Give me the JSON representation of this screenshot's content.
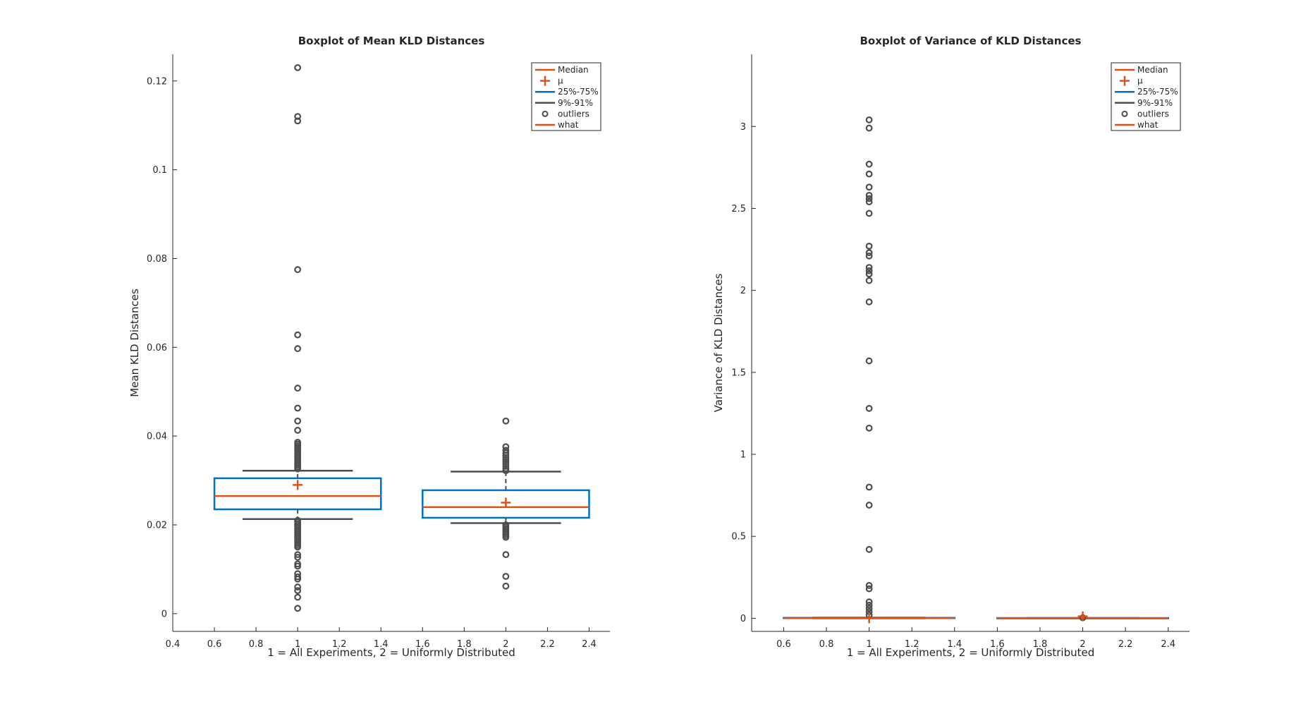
{
  "chart_data": [
    {
      "type": "box",
      "title": "Boxplot of Mean KLD Distances",
      "xlabel": "1 = All Experiments, 2 = Uniformly Distributed",
      "ylabel": "Mean KLD Distances",
      "xlim": [
        0.4,
        2.5
      ],
      "ylim": [
        -0.004,
        0.126
      ],
      "xticks": [
        0.4,
        0.6,
        0.8,
        1,
        1.2,
        1.4,
        1.6,
        1.8,
        2,
        2.2,
        2.4
      ],
      "xtick_labels": [
        "0.4",
        "0.6",
        "0.8",
        "1",
        "1.2",
        "1.4",
        "1.6",
        "1.8",
        "2",
        "2.2",
        "2.4"
      ],
      "yticks": [
        0,
        0.02,
        0.04,
        0.06,
        0.08,
        0.1,
        0.12
      ],
      "ytick_labels": [
        "0",
        "0.02",
        "0.04",
        "0.06",
        "0.08",
        "0.1",
        "0.12"
      ],
      "groups": [
        {
          "x": 1,
          "box_halfwidth": 0.4,
          "whisker_halfwidth": 0.265,
          "q1": 0.0235,
          "median": 0.0265,
          "q3": 0.0305,
          "mean": 0.029,
          "whisker_low": 0.0213,
          "whisker_high": 0.0322,
          "outliers": [
            0.123,
            0.112,
            0.111,
            0.0775,
            0.0628,
            0.0597,
            0.0508,
            0.0463,
            0.0434,
            0.0413,
            0.0386,
            0.0382,
            0.0378,
            0.0374,
            0.037,
            0.0366,
            0.0362,
            0.0358,
            0.0354,
            0.035,
            0.0346,
            0.0342,
            0.0338,
            0.0334,
            0.033,
            0.0326,
            0.021,
            0.0206,
            0.0202,
            0.0198,
            0.0194,
            0.019,
            0.0186,
            0.0182,
            0.0178,
            0.0174,
            0.017,
            0.0166,
            0.0162,
            0.0158,
            0.0154,
            0.015,
            0.0133,
            0.0127,
            0.0112,
            0.0107,
            0.009,
            0.0083,
            0.0078,
            0.006,
            0.0052,
            0.0037,
            0.0012
          ]
        },
        {
          "x": 2,
          "box_halfwidth": 0.4,
          "whisker_halfwidth": 0.265,
          "q1": 0.0216,
          "median": 0.024,
          "q3": 0.0278,
          "mean": 0.025,
          "whisker_low": 0.0204,
          "whisker_high": 0.032,
          "outliers": [
            0.0434,
            0.0376,
            0.0368,
            0.0362,
            0.0357,
            0.0352,
            0.0347,
            0.0342,
            0.0337,
            0.0332,
            0.0327,
            0.0322,
            0.02,
            0.0196,
            0.0192,
            0.0188,
            0.0184,
            0.018,
            0.0176,
            0.0172,
            0.0133,
            0.0084,
            0.0062
          ]
        }
      ],
      "legend": {
        "position": "top-right",
        "entries": [
          {
            "label": "Median",
            "marker": "line",
            "color": "#D95319"
          },
          {
            "label": "μ",
            "marker": "plus",
            "color": "#D95319"
          },
          {
            "label": "25%-75%",
            "marker": "line",
            "color": "#0072BD"
          },
          {
            "label": "9%-91%",
            "marker": "line",
            "color": "#4D4D4D"
          },
          {
            "label": "outliers",
            "marker": "circle",
            "color": "#4D4D4D"
          },
          {
            "label": "what",
            "marker": "line",
            "color": "#D95319"
          }
        ]
      }
    },
    {
      "type": "box",
      "title": "Boxplot of Variance of KLD Distances",
      "xlabel": "1 = All Experiments, 2 = Uniformly Distributed",
      "ylabel": "Variance of KLD Distances",
      "xlim": [
        0.45,
        2.5
      ],
      "ylim": [
        -0.08,
        3.44
      ],
      "xticks": [
        0.6,
        0.8,
        1,
        1.2,
        1.4,
        1.6,
        1.8,
        2,
        2.2,
        2.4
      ],
      "xtick_labels": [
        "0.6",
        "0.8",
        "1",
        "1.2",
        "1.4",
        "1.6",
        "1.8",
        "2",
        "2.2",
        "2.4"
      ],
      "yticks": [
        0,
        0.5,
        1,
        1.5,
        2,
        2.5,
        3
      ],
      "ytick_labels": [
        "0",
        "0.5",
        "1",
        "1.5",
        "2",
        "2.5",
        "3"
      ],
      "groups": [
        {
          "x": 1,
          "box_halfwidth": 0.4,
          "whisker_halfwidth": 0.265,
          "q1": 0.001,
          "median": 0.002,
          "q3": 0.003,
          "mean": 0.0,
          "whisker_low": 0.0,
          "whisker_high": 0.004,
          "outliers": [
            3.04,
            2.99,
            2.77,
            2.71,
            2.63,
            2.58,
            2.56,
            2.54,
            2.47,
            2.27,
            2.23,
            2.21,
            2.14,
            2.12,
            2.1,
            2.06,
            1.93,
            1.57,
            1.28,
            1.16,
            0.8,
            0.69,
            0.42,
            0.2,
            0.18,
            0.1,
            0.08,
            0.06,
            0.04,
            0.02
          ]
        },
        {
          "x": 2,
          "box_halfwidth": 0.4,
          "whisker_halfwidth": 0.265,
          "q1": 0.0005,
          "median": 0.001,
          "q3": 0.0015,
          "mean": 0.012,
          "whisker_low": 0.0,
          "whisker_high": 0.002,
          "outliers": [
            0.003
          ]
        }
      ],
      "legend": {
        "position": "top-right",
        "entries": [
          {
            "label": "Median",
            "marker": "line",
            "color": "#D95319"
          },
          {
            "label": "μ",
            "marker": "plus",
            "color": "#D95319"
          },
          {
            "label": "25%-75%",
            "marker": "line",
            "color": "#0072BD"
          },
          {
            "label": "9%-91%",
            "marker": "line",
            "color": "#4D4D4D"
          },
          {
            "label": "outliers",
            "marker": "circle",
            "color": "#4D4D4D"
          },
          {
            "label": "what",
            "marker": "line",
            "color": "#D95319"
          }
        ]
      }
    }
  ],
  "colors": {
    "median": "#D95319",
    "box": "#0072BD",
    "whisker": "#4D4D4D",
    "axis": "#262626"
  }
}
